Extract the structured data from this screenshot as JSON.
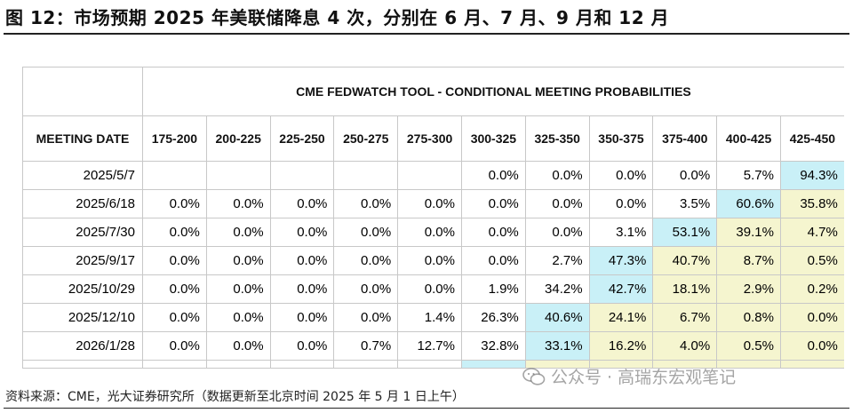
{
  "figure": {
    "title": "图 12：市场预期 2025 年美联储降息 4 次，分别在 6 月、7 月、9 月和 12 月",
    "source": "资料来源：CME，光大证券研究所（数据更新至北京时间 2025 年 5 月 1 日上午）",
    "watermark": "公众号 · 高瑞东宏观笔记",
    "watermark_icon": "wechat-icon"
  },
  "colors": {
    "highlight_blue": "#c9f0f7",
    "highlight_yellow": "#f5f5cf",
    "border": "#c8c8c8"
  },
  "chart_data": {
    "type": "table",
    "title": "CME FEDWATCH TOOL - CONDITIONAL MEETING PROBABILITIES",
    "row_header": "MEETING DATE",
    "columns": [
      "175-200",
      "200-225",
      "225-250",
      "250-275",
      "275-300",
      "300-325",
      "325-350",
      "350-375",
      "375-400",
      "400-425",
      "425-450"
    ],
    "rows": [
      {
        "date": "2025/5/7",
        "values": [
          "",
          "",
          "",
          "",
          "",
          "0.0%",
          "0.0%",
          "0.0%",
          "0.0%",
          "5.7%",
          "94.3%"
        ]
      },
      {
        "date": "2025/6/18",
        "values": [
          "0.0%",
          "0.0%",
          "0.0%",
          "0.0%",
          "0.0%",
          "0.0%",
          "0.0%",
          "0.0%",
          "3.5%",
          "60.6%",
          "35.8%"
        ]
      },
      {
        "date": "2025/7/30",
        "values": [
          "0.0%",
          "0.0%",
          "0.0%",
          "0.0%",
          "0.0%",
          "0.0%",
          "0.0%",
          "3.1%",
          "53.1%",
          "39.1%",
          "4.7%"
        ]
      },
      {
        "date": "2025/9/17",
        "values": [
          "0.0%",
          "0.0%",
          "0.0%",
          "0.0%",
          "0.0%",
          "0.0%",
          "2.7%",
          "47.3%",
          "40.7%",
          "8.7%",
          "0.5%"
        ]
      },
      {
        "date": "2025/10/29",
        "values": [
          "0.0%",
          "0.0%",
          "0.0%",
          "0.0%",
          "0.0%",
          "1.9%",
          "34.2%",
          "42.7%",
          "18.1%",
          "2.9%",
          "0.2%"
        ]
      },
      {
        "date": "2025/12/10",
        "values": [
          "0.0%",
          "0.0%",
          "0.0%",
          "0.0%",
          "1.4%",
          "26.3%",
          "40.6%",
          "24.1%",
          "6.7%",
          "0.8%",
          "0.0%"
        ]
      },
      {
        "date": "2026/1/28",
        "values": [
          "0.0%",
          "0.0%",
          "0.0%",
          "0.7%",
          "12.7%",
          "32.8%",
          "33.1%",
          "16.2%",
          "4.0%",
          "0.5%",
          "0.0%"
        ]
      }
    ],
    "highlight_blue": [
      [
        0,
        10
      ],
      [
        1,
        9
      ],
      [
        2,
        8
      ],
      [
        3,
        7
      ],
      [
        4,
        7
      ],
      [
        5,
        6
      ],
      [
        6,
        6
      ]
    ],
    "highlight_yellow": [
      [
        1,
        10
      ],
      [
        2,
        9
      ],
      [
        2,
        10
      ],
      [
        3,
        8
      ],
      [
        3,
        9
      ],
      [
        3,
        10
      ],
      [
        4,
        8
      ],
      [
        4,
        9
      ],
      [
        4,
        10
      ],
      [
        5,
        7
      ],
      [
        5,
        8
      ],
      [
        5,
        9
      ],
      [
        5,
        10
      ],
      [
        6,
        7
      ],
      [
        6,
        8
      ],
      [
        6,
        9
      ],
      [
        6,
        10
      ]
    ]
  }
}
